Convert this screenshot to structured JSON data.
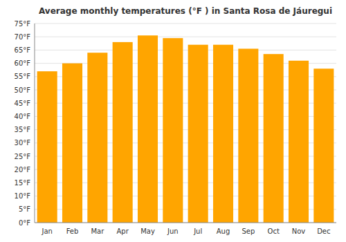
{
  "chart_data": {
    "type": "bar",
    "title": "Average monthly temperatures (°F ) in Santa Rosa de Jáuregui",
    "categories": [
      "Jan",
      "Feb",
      "Mar",
      "Apr",
      "May",
      "Jun",
      "Jul",
      "Aug",
      "Sep",
      "Oct",
      "Nov",
      "Dec"
    ],
    "values": [
      57,
      60,
      64,
      68,
      70.5,
      69.5,
      67,
      67,
      65.5,
      63.5,
      61,
      58
    ],
    "color": "#FFA500",
    "ylim": [
      0,
      75
    ],
    "yticks": [
      {
        "value": 0,
        "label": "0°F"
      },
      {
        "value": 5,
        "label": "5°F"
      },
      {
        "value": 10,
        "label": "10°F"
      },
      {
        "value": 15,
        "label": "15°F"
      },
      {
        "value": 20,
        "label": "20°F"
      },
      {
        "value": 25,
        "label": "25°F"
      },
      {
        "value": 30,
        "label": "30°F"
      },
      {
        "value": 35,
        "label": "35°F"
      },
      {
        "value": 40,
        "label": "40°F"
      },
      {
        "value": 45,
        "label": "45°F"
      },
      {
        "value": 50,
        "label": "50°F"
      },
      {
        "value": 55,
        "label": "55°F"
      },
      {
        "value": 60,
        "label": "60°F"
      },
      {
        "value": 65,
        "label": "65°F"
      },
      {
        "value": 70,
        "label": "70°F"
      },
      {
        "value": 75,
        "label": "75°F"
      }
    ],
    "grid": true
  }
}
